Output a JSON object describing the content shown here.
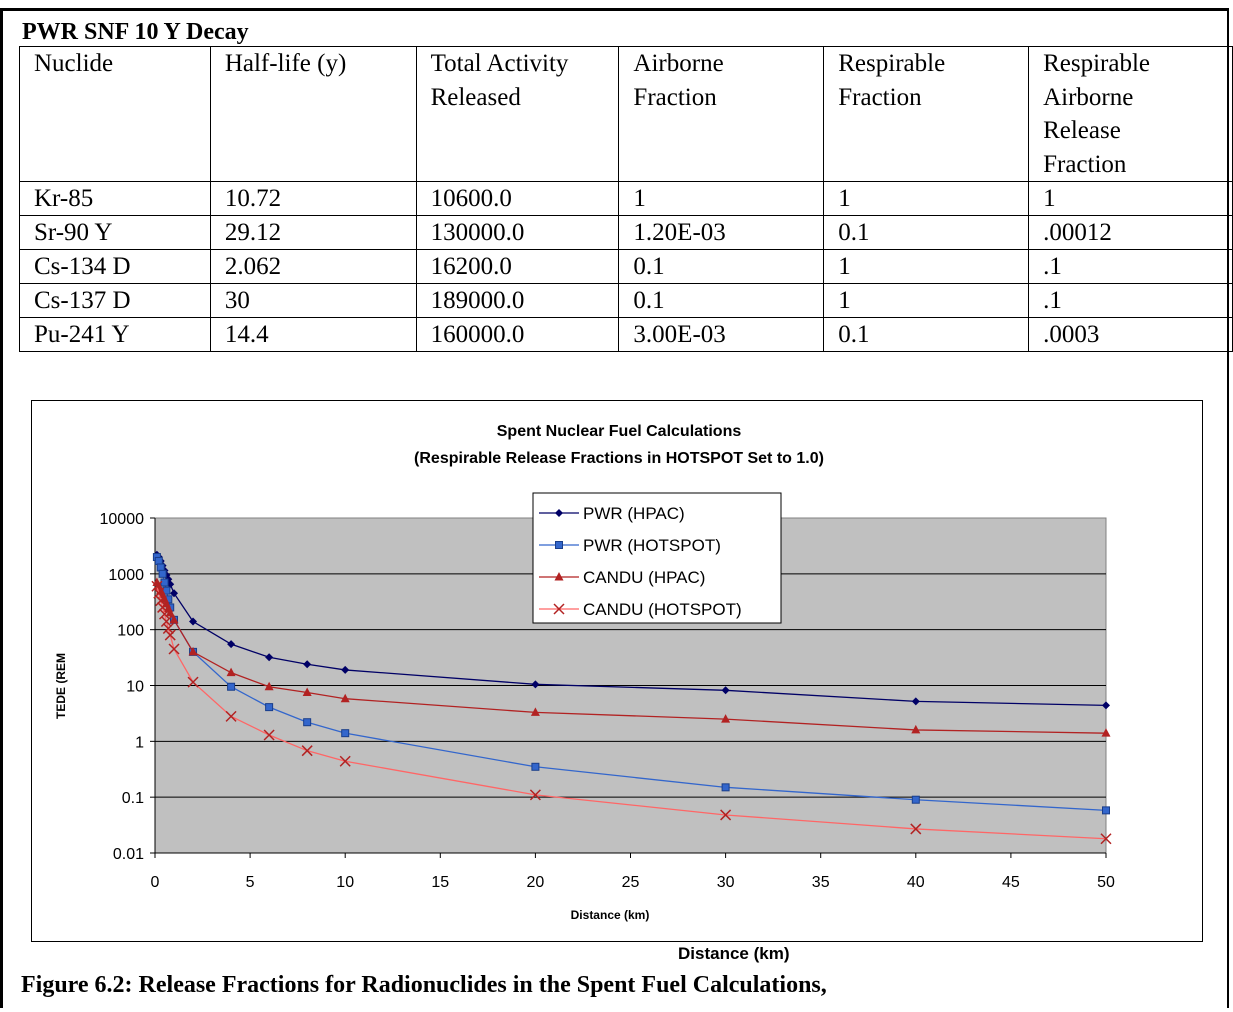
{
  "table": {
    "title": "PWR SNF 10 Y Decay",
    "headers": [
      [
        "Nuclide"
      ],
      [
        "Half-life (y)"
      ],
      [
        "Total  Activity",
        "Released"
      ],
      [
        "Airborne",
        "Fraction"
      ],
      [
        "Respirable",
        "Fraction"
      ],
      [
        "Respirable",
        "Airborne",
        "Release",
        "Fraction"
      ]
    ],
    "rows": [
      [
        "Kr-85",
        "10.72",
        "10600.0",
        "1",
        "1",
        "1"
      ],
      [
        "Sr-90 Y",
        "29.12",
        "130000.0",
        "1.20E-03",
        "0.1",
        ".00012"
      ],
      [
        "Cs-134 D",
        "2.062",
        "16200.0",
        "0.1",
        "1",
        ".1"
      ],
      [
        "Cs-137 D",
        "30",
        "189000.0",
        "0.1",
        "1",
        ".1"
      ],
      [
        "Pu-241 Y",
        "14.4",
        "160000.0",
        "3.00E-03",
        "0.1",
        ".0003"
      ]
    ]
  },
  "chart_data": {
    "type": "line",
    "title": "Spent Nuclear Fuel Calculations",
    "subtitle": "(Respirable Release Fractions in HOTSPOT Set to 1.0)",
    "xlabel": "Distance (km)",
    "ylabel": "TEDE (REM",
    "xlim": [
      0,
      50
    ],
    "xticks": [
      "0",
      "5",
      "10",
      "15",
      "20",
      "25",
      "30",
      "35",
      "40",
      "45",
      "50"
    ],
    "ylim": [
      0.01,
      10000
    ],
    "yscale": "log",
    "yticks": [
      "0.01",
      "0.1",
      "1",
      "10",
      "100",
      "1000",
      "10000"
    ],
    "grid": "horizontal",
    "legend_position": "top-center",
    "plot_background": "#c0c0c0",
    "series": [
      {
        "name": "PWR (HPAC)",
        "color": "#000066",
        "marker": "diamond",
        "x": [
          0.1,
          0.2,
          0.3,
          0.4,
          0.5,
          0.6,
          0.7,
          0.8,
          1,
          2,
          4,
          6,
          8,
          10,
          20,
          30,
          40,
          50
        ],
        "y": [
          2200,
          2000,
          1700,
          1400,
          1150,
          950,
          800,
          650,
          450,
          140,
          55,
          32,
          24,
          19,
          10.5,
          8.2,
          5.2,
          4.4
        ]
      },
      {
        "name": "PWR (HOTSPOT)",
        "color": "#3366cc",
        "marker": "square",
        "x": [
          0.1,
          0.2,
          0.3,
          0.4,
          0.5,
          0.6,
          0.7,
          0.8,
          1,
          2,
          4,
          6,
          8,
          10,
          20,
          30,
          40,
          50
        ],
        "y": [
          2000,
          1700,
          1300,
          1000,
          700,
          500,
          350,
          250,
          150,
          40,
          9.5,
          4.1,
          2.2,
          1.4,
          0.35,
          0.15,
          0.09,
          0.058
        ]
      },
      {
        "name": "CANDU (HPAC)",
        "color": "#b22222",
        "marker": "triangle",
        "x": [
          0.1,
          0.2,
          0.3,
          0.4,
          0.5,
          0.6,
          0.7,
          0.8,
          1,
          2,
          4,
          6,
          8,
          10,
          20,
          30,
          40,
          50
        ],
        "y": [
          700,
          600,
          500,
          420,
          350,
          290,
          240,
          200,
          150,
          40,
          17,
          9.5,
          7.5,
          5.8,
          3.3,
          2.5,
          1.6,
          1.4
        ]
      },
      {
        "name": "CANDU (HOTSPOT)",
        "color": "#ff6666",
        "marker": "x",
        "x": [
          0.1,
          0.2,
          0.3,
          0.4,
          0.5,
          0.6,
          0.7,
          0.8,
          1,
          2,
          4,
          6,
          8,
          10,
          20,
          30,
          40,
          50
        ],
        "y": [
          600,
          450,
          330,
          250,
          190,
          140,
          105,
          80,
          45,
          11.5,
          2.8,
          1.3,
          0.68,
          0.44,
          0.11,
          0.048,
          0.027,
          0.018
        ]
      }
    ]
  },
  "outer_xlabel": "Distance (km)",
  "caption": "Figure 6.2: Release Fractions for Radionuclides in the Spent Fuel Calculations,"
}
